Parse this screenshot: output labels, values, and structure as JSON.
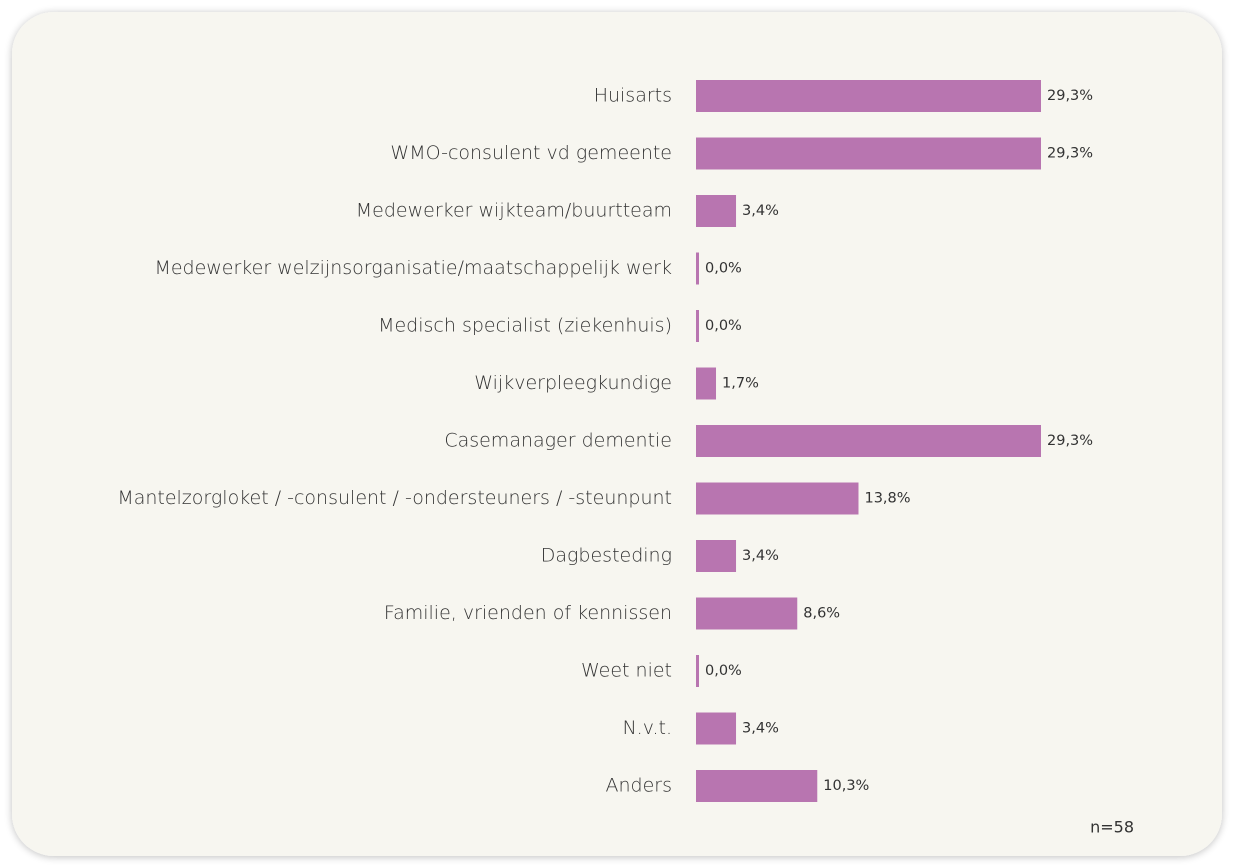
{
  "chart_data": {
    "type": "bar",
    "orientation": "horizontal",
    "categories": [
      "Huisarts",
      "WMO-consulent vd gemeente",
      "Medewerker wijkteam/buurtteam",
      "Medewerker welzijnsorganisatie/maatschappelijk werk",
      "Medisch specialist (ziekenhuis)",
      "Wijkverpleegkundige",
      "Casemanager dementie",
      "Mantelzorgloket / -consulent / -ondersteuners / -steunpunt",
      "Dagbesteding",
      "Familie, vrienden of kennissen",
      "Weet niet",
      "N.v.t.",
      "Anders"
    ],
    "values": [
      29.3,
      29.3,
      3.4,
      0.0,
      0.0,
      1.7,
      29.3,
      13.8,
      3.4,
      8.6,
      0.0,
      3.4,
      10.3
    ],
    "value_labels": [
      "29,3%",
      "29,3%",
      "3,4%",
      "0,0%",
      "0,0%",
      "1,7%",
      "29,3%",
      "13,8%",
      "3,4%",
      "8,6%",
      "0,0%",
      "3,4%",
      "10,3%"
    ],
    "color": "#b875b0",
    "annotation": "n=58"
  }
}
